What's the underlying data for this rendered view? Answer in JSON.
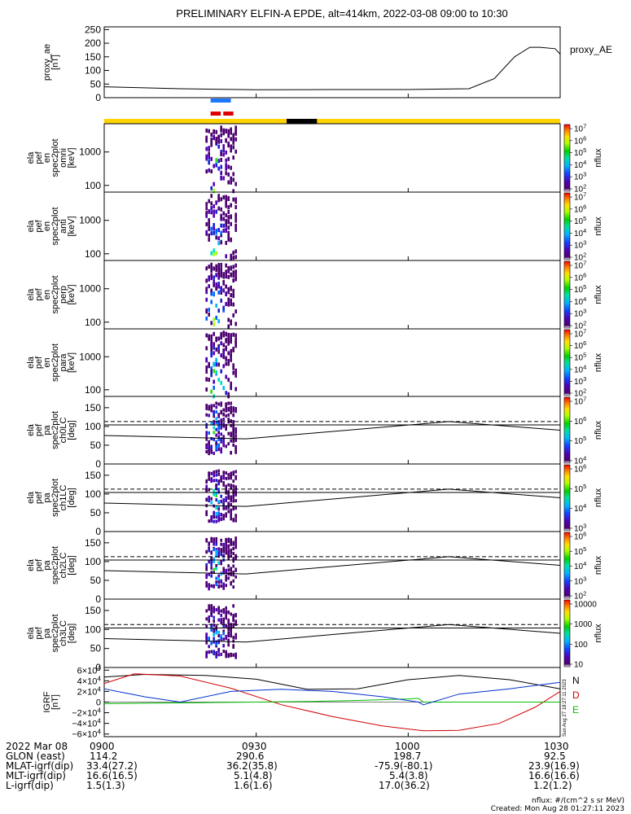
{
  "title": "PRELIMINARY ELFIN-A EPDE, alt=414km, 2022-03-08 09:00 to 10:30",
  "chart_data": [
    {
      "type": "line",
      "id": "proxy_ae",
      "ylabel": [
        "proxy_ae",
        "[nT]"
      ],
      "legend": "proxy_AE",
      "ylim": [
        0,
        260
      ],
      "yticks": [
        "250",
        "200",
        "150",
        "100",
        "50",
        "0"
      ],
      "ytick_values": [
        250,
        200,
        150,
        100,
        50,
        0
      ],
      "series": [
        {
          "x": [
            "09:00",
            "09:15",
            "09:30",
            "09:45",
            "10:00",
            "10:12",
            "10:17",
            "10:21",
            "10:24",
            "10:26",
            "10:29",
            "10:30"
          ],
          "values": [
            40,
            33,
            29,
            30,
            30,
            33,
            70,
            150,
            185,
            185,
            180,
            160
          ],
          "color": "#000000"
        }
      ]
    },
    {
      "type": "bar",
      "id": "status_bars",
      "bars": [
        {
          "start": "09:21",
          "end": "09:25",
          "color": "#1e78ff"
        },
        {
          "start": "09:21",
          "end": "09:23",
          "color": "#e00000"
        },
        {
          "start": "09:23.5",
          "end": "09:25.5",
          "color": "#e00000"
        }
      ],
      "track": {
        "color": "#ffd400",
        "gap_start": "09:36",
        "gap_end": "09:42",
        "gap_color": "#000000"
      }
    },
    {
      "type": "heatmap",
      "id": "pef_en_omni",
      "ylabel": [
        "ela",
        "pef",
        "en",
        "spec2plot",
        "omni",
        "[keV]"
      ],
      "yscale": "log",
      "ylim": [
        63,
        7000
      ],
      "yticks": [
        "1000",
        "100"
      ],
      "xrange": [
        "09:20",
        "09:26"
      ],
      "colorbar": {
        "label": "nflux",
        "scale": "log",
        "ticks": [
          "10^7",
          "10^6",
          "10^5",
          "10^4",
          "10^3",
          "10^2"
        ]
      }
    },
    {
      "type": "heatmap",
      "id": "pef_en_anti",
      "ylabel": [
        "ela",
        "pef",
        "en",
        "spec2plot",
        "anti",
        "[keV]"
      ],
      "yscale": "log",
      "ylim": [
        63,
        7000
      ],
      "yticks": [
        "1000",
        "100"
      ],
      "xrange": [
        "09:20",
        "09:26"
      ],
      "colorbar": {
        "label": "nflux",
        "scale": "log",
        "ticks": [
          "10^7",
          "10^6",
          "10^5",
          "10^4",
          "10^3",
          "10^2"
        ]
      }
    },
    {
      "type": "heatmap",
      "id": "pef_en_perp",
      "ylabel": [
        "ela",
        "pef",
        "en",
        "spec2plot",
        "perp",
        "[keV]"
      ],
      "yscale": "log",
      "ylim": [
        63,
        7000
      ],
      "yticks": [
        "1000",
        "100"
      ],
      "xrange": [
        "09:20",
        "09:26"
      ],
      "colorbar": {
        "label": "nflux",
        "scale": "log",
        "ticks": [
          "10^7",
          "10^6",
          "10^5",
          "10^4",
          "10^3",
          "10^2"
        ]
      }
    },
    {
      "type": "heatmap",
      "id": "pef_en_para",
      "ylabel": [
        "ela",
        "pef",
        "en",
        "spec2plot",
        "para",
        "[keV]"
      ],
      "yscale": "log",
      "ylim": [
        63,
        7000
      ],
      "yticks": [
        "1000",
        "100"
      ],
      "xrange": [
        "09:20",
        "09:26"
      ],
      "colorbar": {
        "label": "nflux",
        "scale": "log",
        "ticks": [
          "10^7",
          "10^6",
          "10^5",
          "10^4",
          "10^3",
          "10^2"
        ]
      }
    },
    {
      "type": "heatmap",
      "id": "pef_pa_ch0LC",
      "ylabel": [
        "ela",
        "pef",
        "pa",
        "spec2plot",
        "ch0LC",
        "[deg]"
      ],
      "ylim": [
        0,
        180
      ],
      "yticks": [
        "150",
        "100",
        "50",
        "0"
      ],
      "ytick_values": [
        150,
        100,
        50,
        0
      ],
      "xrange": [
        "09:20",
        "09:26"
      ],
      "lines": [
        {
          "style": "dashed",
          "x": [
            "09:00",
            "10:30"
          ],
          "values": [
            113,
            113
          ]
        },
        {
          "style": "solid",
          "x": [
            "09:00",
            "09:28",
            "10:08",
            "10:30"
          ],
          "values": [
            76,
            67,
            113,
            90
          ]
        },
        {
          "style": "solid",
          "x": [
            "09:00",
            "10:30"
          ],
          "values": [
            104,
            104
          ]
        }
      ],
      "colorbar": {
        "label": "nflux",
        "scale": "log",
        "ticks": [
          "10^7",
          "10^6",
          "10^5",
          "10^4"
        ]
      }
    },
    {
      "type": "heatmap",
      "id": "pef_pa_ch1LC",
      "ylabel": [
        "ela",
        "pef",
        "pa",
        "spec2plot",
        "ch1LC",
        "[deg]"
      ],
      "ylim": [
        0,
        180
      ],
      "yticks": [
        "150",
        "100",
        "50",
        "0"
      ],
      "ytick_values": [
        150,
        100,
        50,
        0
      ],
      "xrange": [
        "09:20",
        "09:26"
      ],
      "lines": [
        {
          "style": "dashed",
          "x": [
            "09:00",
            "10:30"
          ],
          "values": [
            113,
            113
          ]
        },
        {
          "style": "solid",
          "x": [
            "09:00",
            "09:28",
            "10:08",
            "10:30"
          ],
          "values": [
            76,
            67,
            113,
            90
          ]
        },
        {
          "style": "solid",
          "x": [
            "09:00",
            "10:30"
          ],
          "values": [
            104,
            104
          ]
        }
      ],
      "colorbar": {
        "label": "nflux",
        "scale": "log",
        "ticks": [
          "10^6",
          "10^5",
          "10^4",
          "10^3"
        ]
      }
    },
    {
      "type": "heatmap",
      "id": "pef_pa_ch2LC",
      "ylabel": [
        "ela",
        "pef",
        "pa",
        "spec2plot",
        "ch2LC",
        "[deg]"
      ],
      "ylim": [
        0,
        180
      ],
      "yticks": [
        "150",
        "100",
        "50",
        "0"
      ],
      "ytick_values": [
        150,
        100,
        50,
        0
      ],
      "xrange": [
        "09:20",
        "09:26"
      ],
      "lines": [
        {
          "style": "dashed",
          "x": [
            "09:00",
            "10:30"
          ],
          "values": [
            113,
            113
          ]
        },
        {
          "style": "solid",
          "x": [
            "09:00",
            "09:28",
            "10:08",
            "10:30"
          ],
          "values": [
            76,
            67,
            113,
            90
          ]
        },
        {
          "style": "solid",
          "x": [
            "09:00",
            "10:30"
          ],
          "values": [
            104,
            104
          ]
        }
      ],
      "colorbar": {
        "label": "nflux",
        "scale": "log",
        "ticks": [
          "10^6",
          "10^5",
          "10^4",
          "10^3",
          "10^2"
        ]
      }
    },
    {
      "type": "heatmap",
      "id": "pef_pa_ch3LC",
      "ylabel": [
        "ela",
        "pef",
        "pa",
        "spec2plot",
        "ch3LC",
        "[deg]"
      ],
      "ylim": [
        0,
        180
      ],
      "yticks": [
        "150",
        "100",
        "50",
        "0"
      ],
      "ytick_values": [
        150,
        100,
        50,
        0
      ],
      "xrange": [
        "09:20",
        "09:26"
      ],
      "lines": [
        {
          "style": "dashed",
          "x": [
            "09:00",
            "10:30"
          ],
          "values": [
            113,
            113
          ]
        },
        {
          "style": "solid",
          "x": [
            "09:00",
            "09:28",
            "10:08",
            "10:30"
          ],
          "values": [
            76,
            67,
            113,
            90
          ]
        },
        {
          "style": "solid",
          "x": [
            "09:00",
            "10:30"
          ],
          "values": [
            104,
            104
          ]
        }
      ],
      "colorbar": {
        "label": "nflux",
        "scale": "linear-labels",
        "ticks": [
          "10000",
          "1000",
          "100",
          "10"
        ]
      }
    },
    {
      "type": "line",
      "id": "igrf",
      "ylabel": [
        "IGRF",
        "[nT]"
      ],
      "ylim": [
        -65000,
        65000
      ],
      "yticks": [
        "6×10^4",
        "4×10^4",
        "2×10^4",
        "0",
        "−2×10^4",
        "−4×10^4",
        "−6×10^4"
      ],
      "ytick_values": [
        60000,
        40000,
        20000,
        0,
        -20000,
        -40000,
        -60000
      ],
      "legend": [
        "N",
        "D",
        "E"
      ],
      "series": [
        {
          "name": "N",
          "color": "#000000",
          "x": [
            "09:00",
            "09:08",
            "09:20",
            "09:30",
            "09:40",
            "09:50",
            "10:00",
            "10:10",
            "10:20",
            "10:30"
          ],
          "values": [
            47000,
            52000,
            50000,
            43000,
            24000,
            25000,
            42000,
            50000,
            42000,
            25000
          ]
        },
        {
          "name": "D",
          "color": "#d00000",
          "x": [
            "09:00",
            "09:06",
            "09:15",
            "09:25",
            "09:35",
            "09:45",
            "09:55",
            "10:03",
            "10:10",
            "10:18",
            "10:25",
            "10:30"
          ],
          "values": [
            35000,
            53000,
            49000,
            26000,
            -5000,
            -27000,
            -45000,
            -54000,
            -53000,
            -40000,
            -10000,
            20000
          ]
        },
        {
          "name": "E",
          "color": "#00c000",
          "x": [
            "09:00",
            "09:10",
            "09:20",
            "09:30",
            "09:40",
            "09:50",
            "10:00",
            "10:02",
            "10:03",
            "10:15",
            "10:30"
          ],
          "values": [
            -3000,
            -2000,
            -1000,
            0,
            1000,
            3000,
            6000,
            7000,
            0,
            0,
            0
          ]
        },
        {
          "name": "blue",
          "color": "#0030d0",
          "x": [
            "09:00",
            "09:08",
            "09:15",
            "09:25",
            "09:35",
            "09:45",
            "09:55",
            "10:02",
            "10:03",
            "10:10",
            "10:20",
            "10:30"
          ],
          "values": [
            25000,
            10000,
            0,
            20000,
            24000,
            20000,
            10000,
            0,
            -5000,
            15000,
            25000,
            37000
          ]
        }
      ],
      "side_note": "Sun Aug 27 18:27:11 2023"
    }
  ],
  "footer": {
    "date": "2022 Mar 08",
    "rows": [
      {
        "label": "",
        "values": [
          "0900",
          "0930",
          "1000",
          "1030"
        ]
      },
      {
        "label": "GLON (east)",
        "values": [
          "114.2",
          "290.6",
          "198.7",
          "92.5"
        ]
      },
      {
        "label": "MLAT-igrf(dip)",
        "values": [
          "33.4(27.2)",
          "36.2(35.8)",
          "-75.9(-80.1)",
          "23.9(16.9)"
        ]
      },
      {
        "label": "MLT-igrf(dip)",
        "values": [
          "16.6(16.5)",
          "5.1(4.8)",
          "5.4(3.8)",
          "16.6(16.6)"
        ]
      },
      {
        "label": "L-igrf(dip)",
        "values": [
          "1.5(1.3)",
          "1.6(1.6)",
          "17.0(36.2)",
          "1.2(1.2)"
        ]
      }
    ],
    "nflux_note": "nflux: #/(cm^2 s sr MeV)",
    "created": "Created: Mon Aug 28 01:27:11 2023"
  }
}
